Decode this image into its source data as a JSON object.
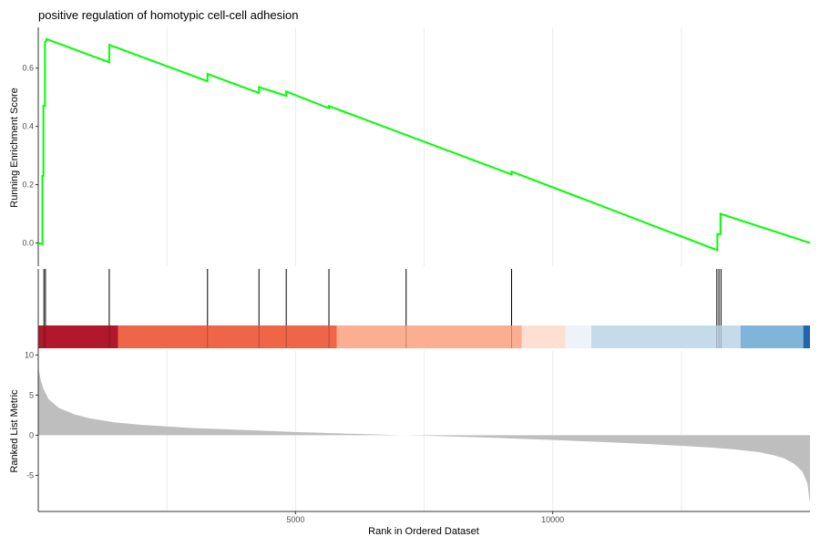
{
  "chart_data": {
    "type": "line",
    "title": "positive regulation of homotypic cell-cell adhesion",
    "xlabel": "Rank in Ordered Dataset",
    "x_ticks": [
      5000,
      10000
    ],
    "xlim": [
      0,
      15000
    ],
    "grid": "vertical only",
    "panels": [
      {
        "name": "running-score",
        "ylabel": "Running Enrichment Score",
        "ylim": [
          -0.08,
          0.74
        ],
        "y_ticks": [
          0.0,
          0.2,
          0.4,
          0.6
        ],
        "y_tick_labels": [
          "0.0",
          "0.2",
          "0.4",
          "0.6"
        ],
        "line_color": "#00ff00",
        "series": [
          {
            "x": [
              0,
              80,
              80,
              100,
              100,
              130,
              130,
              160,
              160,
              1380,
              1380,
              3290,
              3290,
              4290,
              4290,
              4820,
              4820,
              5650,
              5650,
              9200,
              9200,
              13200,
              13200,
              13260,
              13260,
              15000
            ],
            "y": [
              0.0,
              -0.005,
              0.23,
              0.23,
              0.47,
              0.47,
              0.69,
              0.695,
              0.7,
              0.62,
              0.68,
              0.555,
              0.58,
              0.515,
              0.535,
              0.505,
              0.52,
              0.462,
              0.47,
              0.235,
              0.245,
              -0.025,
              0.03,
              0.03,
              0.1,
              0.0
            ]
          }
        ]
      },
      {
        "name": "hits",
        "hit_positions": [
          110,
          140,
          1380,
          3290,
          4290,
          4820,
          5650,
          7150,
          9200,
          13190,
          13230,
          13270
        ],
        "hit_color": "#000000",
        "color_bands": [
          {
            "from": 0,
            "to": 1550,
            "color": "#b2182b"
          },
          {
            "from": 1550,
            "to": 5800,
            "color": "#ef6548"
          },
          {
            "from": 5800,
            "to": 9400,
            "color": "#fcae91"
          },
          {
            "from": 9400,
            "to": 10250,
            "color": "#fde0d2"
          },
          {
            "from": 10250,
            "to": 10750,
            "color": "#edf3f9"
          },
          {
            "from": 10750,
            "to": 13650,
            "color": "#c6dbe9"
          },
          {
            "from": 13650,
            "to": 14870,
            "color": "#7fb5d8"
          },
          {
            "from": 14870,
            "to": 15000,
            "color": "#2166ac"
          }
        ]
      },
      {
        "name": "ranked-metric",
        "ylabel": "Ranked List Metric",
        "ylim": [
          -9.5,
          10.5
        ],
        "y_ticks": [
          10,
          5,
          0,
          -5
        ],
        "y_tick_labels": [
          "10",
          "5",
          "0",
          "-5"
        ],
        "fill_color": "#bebebe",
        "series": [
          {
            "x": [
              0,
              20,
              50,
              100,
              200,
              400,
              700,
              1000,
              1500,
              2000,
              3000,
              4000,
              5000,
              6000,
              7000,
              7500,
              8000,
              9000,
              10000,
              11000,
              12000,
              13000,
              13500,
              14000,
              14300,
              14500,
              14700,
              14850,
              14950,
              15000
            ],
            "y": [
              8.5,
              7.8,
              6.8,
              5.8,
              4.5,
              3.4,
              2.6,
              2.1,
              1.6,
              1.3,
              0.9,
              0.65,
              0.4,
              0.2,
              0.02,
              -0.05,
              -0.15,
              -0.35,
              -0.6,
              -0.85,
              -1.15,
              -1.5,
              -1.75,
              -2.1,
              -2.5,
              -2.9,
              -3.6,
              -4.5,
              -6.0,
              -8.5
            ]
          }
        ]
      }
    ]
  }
}
